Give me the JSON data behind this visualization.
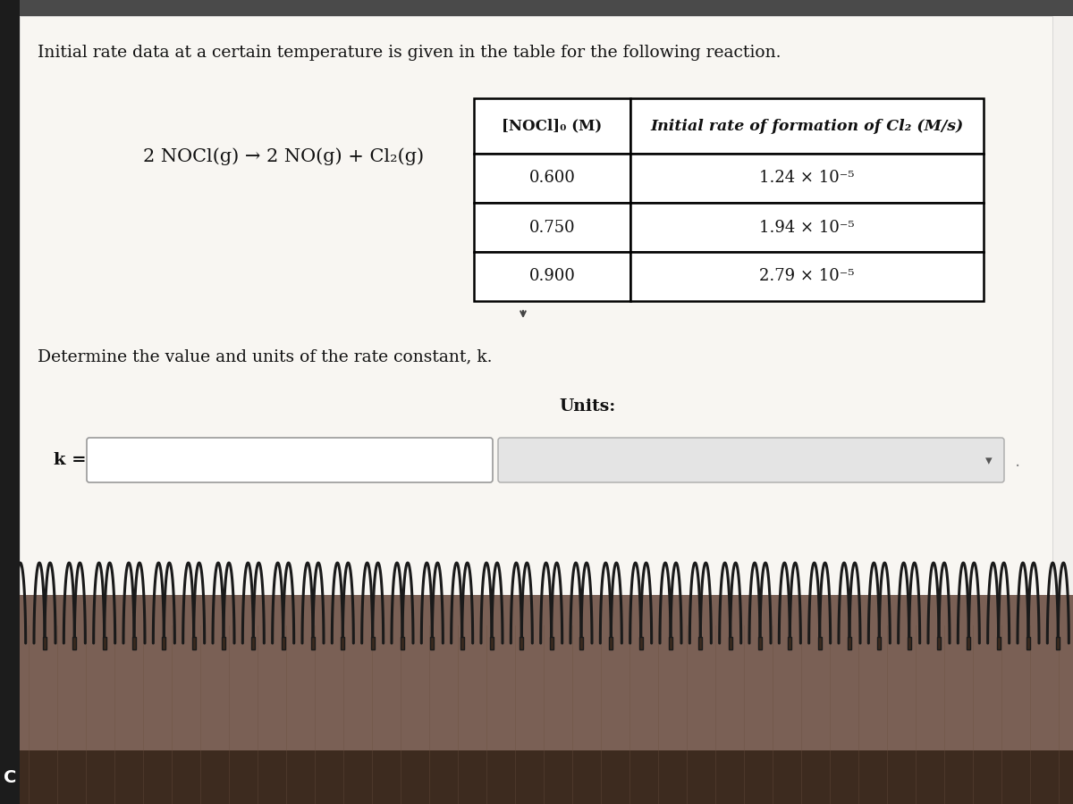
{
  "title_text": "Initial rate data at a certain temperature is given in the table for the following reaction.",
  "col1_header": "[NOCl]₀ (M)",
  "col2_header": "Initial rate of formation of Cl₂ (M/s)",
  "col1_values": [
    "0.600",
    "0.750",
    "0.900"
  ],
  "col2_values": [
    "1.24 × 10⁻⁵",
    "1.94 × 10⁻⁵",
    "2.79 × 10⁻⁵"
  ],
  "determine_text": "Determine the value and units of the rate constant, k.",
  "k_label": "k =",
  "units_label": "Units:",
  "page_bg": "#f2f0ed",
  "notebook_color": "#7a6055",
  "notebook_dark": "#3d2b1f",
  "spiral_color": "#1a1a1a",
  "left_bar_color": "#1c1c1c",
  "top_bar_color": "#4a4a4a"
}
